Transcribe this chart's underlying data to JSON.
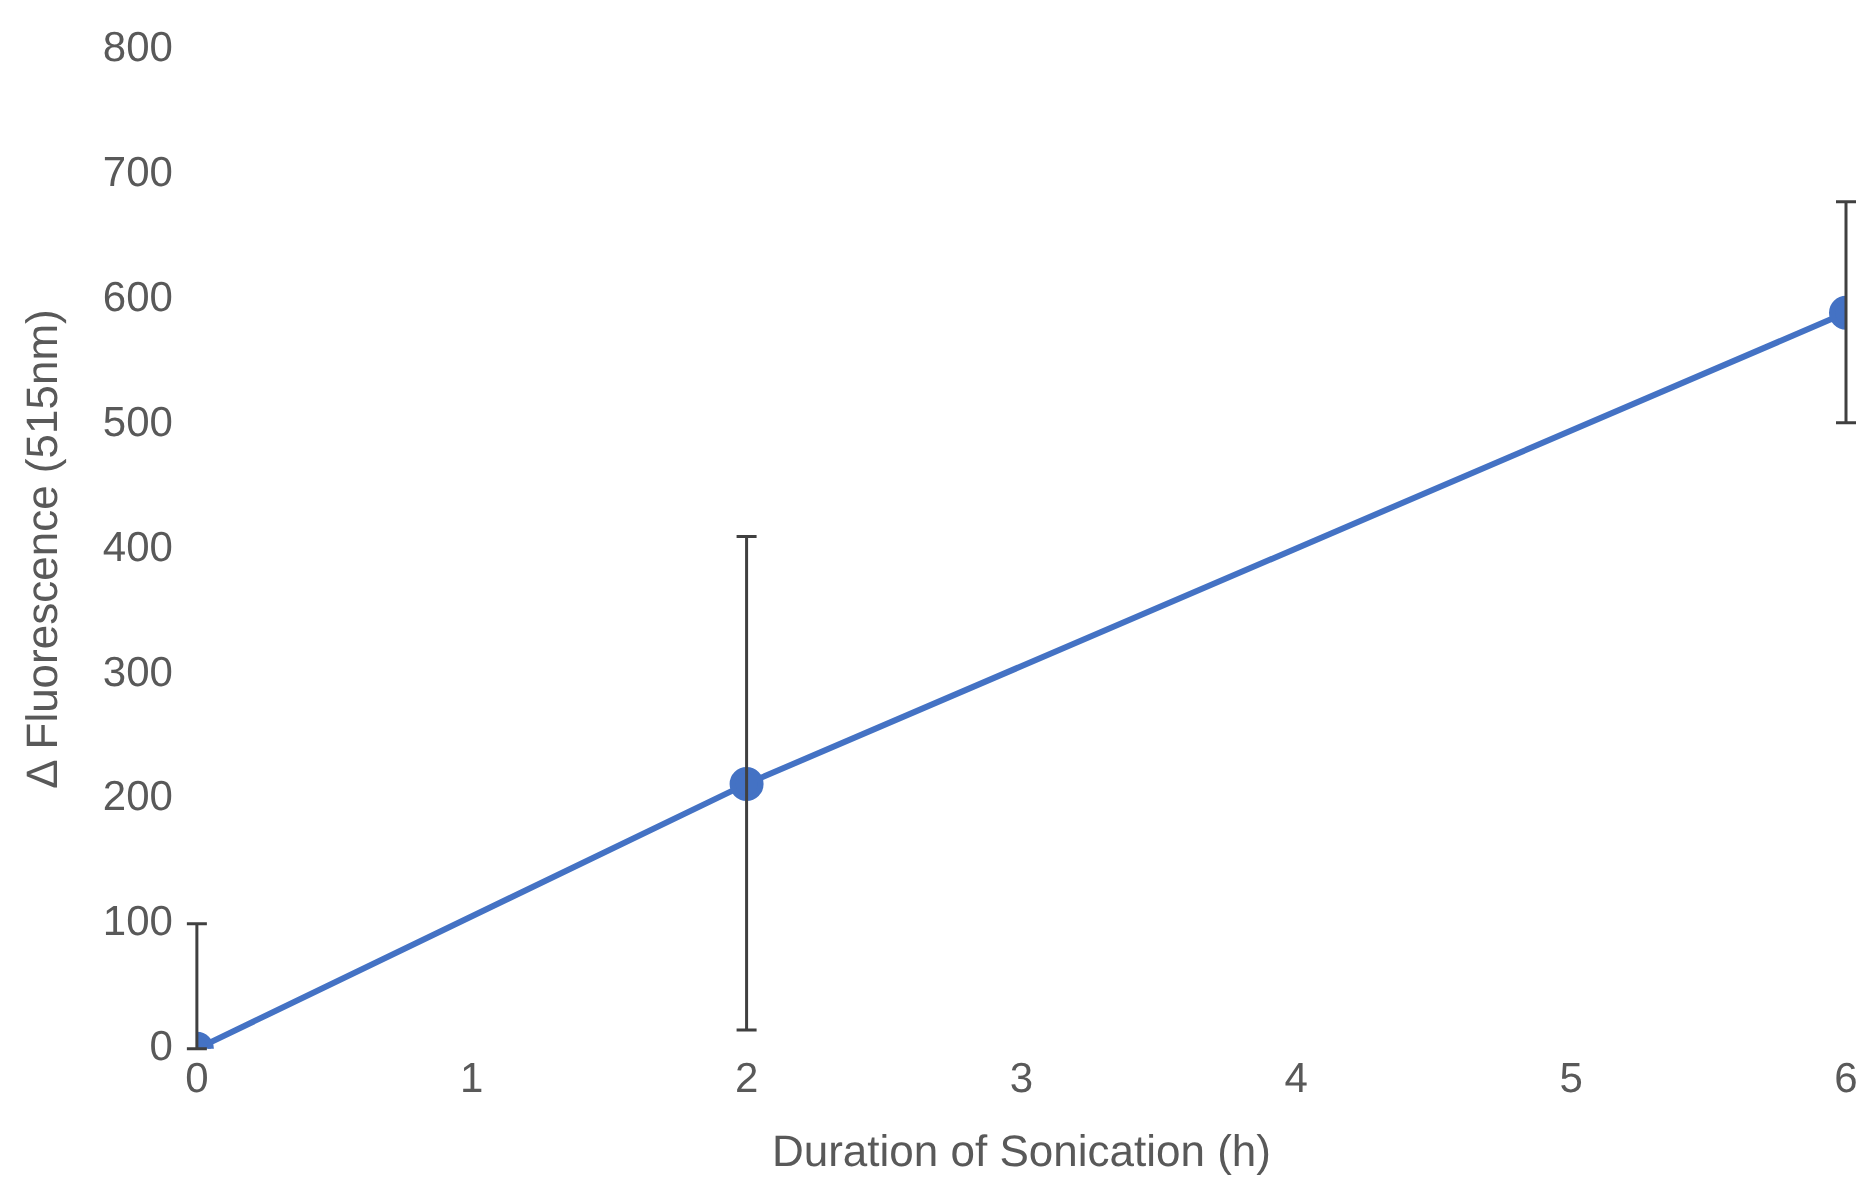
{
  "chart_data": {
    "type": "line",
    "xlabel": "Duration of Sonication (h)",
    "ylabel": "Δ Fluorescence (515nm)",
    "x": [
      0,
      2,
      6
    ],
    "series": [
      {
        "color": "#4472c4",
        "values": [
          0,
          212,
          589
        ],
        "errors": [
          [
            0,
            100
          ],
          [
            15,
            410
          ],
          [
            501,
            678
          ]
        ]
      }
    ],
    "xlim": [
      0,
      6
    ],
    "xticks": [
      0,
      1,
      2,
      3,
      4,
      5,
      6
    ],
    "ylim": [
      0,
      800
    ],
    "yticks": [
      0,
      100,
      200,
      300,
      400,
      500,
      600,
      700,
      800
    ],
    "grid": false,
    "legend": false,
    "marker": "circle",
    "line_style": "solid"
  }
}
